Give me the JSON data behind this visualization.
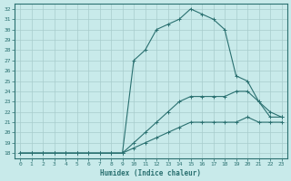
{
  "xlabel": "Humidex (Indice chaleur)",
  "ylabel": "",
  "bg_color": "#c8eaea",
  "line_color": "#2a7070",
  "grid_color": "#a8cccc",
  "xlim": [
    -0.5,
    23.5
  ],
  "ylim": [
    17.5,
    32.5
  ],
  "yticks": [
    18,
    19,
    20,
    21,
    22,
    23,
    24,
    25,
    26,
    27,
    28,
    29,
    30,
    31,
    32
  ],
  "xticks": [
    0,
    1,
    2,
    3,
    4,
    5,
    6,
    7,
    8,
    9,
    10,
    11,
    12,
    13,
    14,
    15,
    16,
    17,
    18,
    19,
    20,
    21,
    22,
    23
  ],
  "line1_x": [
    0,
    1,
    2,
    3,
    4,
    5,
    6,
    7,
    8,
    9,
    10,
    11,
    12,
    13,
    14,
    15,
    16,
    17,
    18,
    19,
    20,
    21,
    22,
    23
  ],
  "line1_y": [
    18,
    18,
    18,
    18,
    18,
    18,
    18,
    18,
    18,
    18,
    18.5,
    19,
    19.5,
    20,
    20.5,
    21,
    21,
    21,
    21,
    21,
    21.5,
    21,
    21,
    21
  ],
  "line2_x": [
    0,
    1,
    2,
    3,
    4,
    5,
    6,
    7,
    8,
    9,
    10,
    11,
    12,
    13,
    14,
    15,
    16,
    17,
    18,
    19,
    20,
    21,
    22,
    23
  ],
  "line2_y": [
    18,
    18,
    18,
    18,
    18,
    18,
    18,
    18,
    18,
    18,
    19,
    20,
    21,
    22,
    23,
    23.5,
    23.5,
    23.5,
    23.5,
    24,
    24,
    23,
    22,
    21.5
  ],
  "line3_x": [
    0,
    1,
    2,
    3,
    4,
    5,
    6,
    7,
    8,
    9,
    10,
    11,
    12,
    13,
    14,
    15,
    16,
    17,
    18,
    19,
    20,
    21,
    22,
    23
  ],
  "line3_y": [
    18,
    18,
    18,
    18,
    18,
    18,
    18,
    18,
    18,
    18,
    27,
    28,
    30,
    30.5,
    31,
    32,
    31.5,
    31,
    30,
    25.5,
    25,
    23,
    21.5,
    21.5
  ]
}
